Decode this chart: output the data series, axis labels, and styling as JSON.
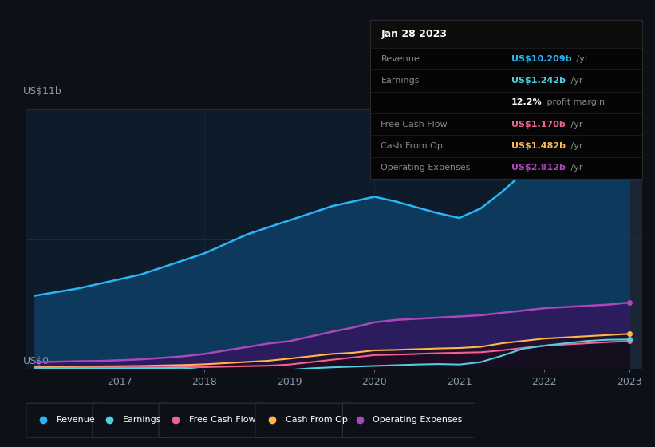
{
  "background_color": "#0d1117",
  "plot_bg_color": "#0d1b2a",
  "ylabel_top": "US$11b",
  "ylabel_bottom": "US$0",
  "x_years": [
    2016.0,
    2016.25,
    2016.5,
    2016.75,
    2017.0,
    2017.25,
    2017.5,
    2017.75,
    2018.0,
    2018.25,
    2018.5,
    2018.75,
    2019.0,
    2019.25,
    2019.5,
    2019.75,
    2020.0,
    2020.25,
    2020.5,
    2020.75,
    2021.0,
    2021.25,
    2021.5,
    2021.75,
    2022.0,
    2022.25,
    2022.5,
    2022.75,
    2023.0
  ],
  "revenue": [
    3.1,
    3.25,
    3.4,
    3.6,
    3.8,
    4.0,
    4.3,
    4.6,
    4.9,
    5.3,
    5.7,
    6.0,
    6.3,
    6.6,
    6.9,
    7.1,
    7.3,
    7.1,
    6.85,
    6.6,
    6.4,
    6.8,
    7.5,
    8.3,
    9.1,
    9.6,
    10.0,
    10.15,
    10.2
  ],
  "earnings": [
    0.04,
    0.03,
    0.02,
    0.01,
    0.01,
    0.02,
    0.03,
    0.04,
    -0.06,
    -0.1,
    -0.13,
    -0.14,
    -0.05,
    0.02,
    0.06,
    0.09,
    0.12,
    0.15,
    0.18,
    0.2,
    0.18,
    0.28,
    0.55,
    0.85,
    0.98,
    1.08,
    1.18,
    1.23,
    1.24
  ],
  "free_cash_flow": [
    0.04,
    0.04,
    0.05,
    0.05,
    0.05,
    0.06,
    0.06,
    0.07,
    0.07,
    0.09,
    0.11,
    0.13,
    0.18,
    0.28,
    0.38,
    0.48,
    0.58,
    0.6,
    0.63,
    0.66,
    0.68,
    0.7,
    0.78,
    0.88,
    0.98,
    1.03,
    1.08,
    1.13,
    1.17
  ],
  "cash_from_op": [
    0.09,
    0.09,
    0.1,
    0.1,
    0.11,
    0.12,
    0.14,
    0.16,
    0.19,
    0.24,
    0.29,
    0.34,
    0.43,
    0.53,
    0.63,
    0.68,
    0.78,
    0.8,
    0.83,
    0.86,
    0.88,
    0.93,
    1.08,
    1.18,
    1.28,
    1.33,
    1.38,
    1.43,
    1.48
  ],
  "operating_expenses": [
    0.28,
    0.3,
    0.32,
    0.33,
    0.36,
    0.4,
    0.46,
    0.53,
    0.63,
    0.78,
    0.92,
    1.07,
    1.17,
    1.37,
    1.57,
    1.75,
    1.97,
    2.07,
    2.12,
    2.17,
    2.22,
    2.27,
    2.37,
    2.47,
    2.57,
    2.62,
    2.67,
    2.72,
    2.81
  ],
  "revenue_color": "#29b6f6",
  "earnings_color": "#4dd0e1",
  "free_cash_flow_color": "#f06292",
  "cash_from_op_color": "#ffb74d",
  "operating_expenses_color": "#ab47bc",
  "revenue_fill": "#0d3a5c",
  "operating_expenses_fill": "#2d1b5e",
  "grid_color": "#1e2d3d",
  "tick_label_color": "#8899aa",
  "highlight_x_start": 2022.0,
  "highlight_color": "#1a2535",
  "ylim": [
    0,
    11
  ],
  "xlim_start": 2015.9,
  "xlim_end": 2023.15,
  "x_ticks": [
    2017,
    2018,
    2019,
    2020,
    2021,
    2022,
    2023
  ],
  "x_tick_labels": [
    "2017",
    "2018",
    "2019",
    "2020",
    "2021",
    "2022",
    "2023"
  ],
  "tooltip_title": "Jan 28 2023",
  "tooltip_rows": [
    {
      "label": "Revenue",
      "value": "US$10.209b",
      "suffix": " /yr",
      "color": "#29b6f6"
    },
    {
      "label": "Earnings",
      "value": "US$1.242b",
      "suffix": " /yr",
      "color": "#4dd0e1"
    },
    {
      "label": "",
      "value": "12.2%",
      "suffix": " profit margin",
      "color": "white"
    },
    {
      "label": "Free Cash Flow",
      "value": "US$1.170b",
      "suffix": " /yr",
      "color": "#f06292"
    },
    {
      "label": "Cash From Op",
      "value": "US$1.482b",
      "suffix": " /yr",
      "color": "#ffb74d"
    },
    {
      "label": "Operating Expenses",
      "value": "US$2.812b",
      "suffix": " /yr",
      "color": "#ab47bc"
    }
  ],
  "legend_items": [
    "Revenue",
    "Earnings",
    "Free Cash Flow",
    "Cash From Op",
    "Operating Expenses"
  ],
  "legend_colors": [
    "#29b6f6",
    "#4dd0e1",
    "#f06292",
    "#ffb74d",
    "#ab47bc"
  ]
}
